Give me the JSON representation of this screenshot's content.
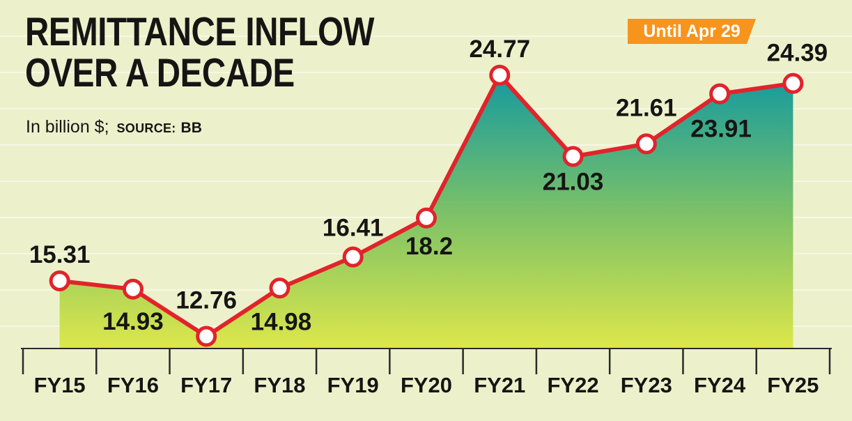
{
  "title": {
    "line1": "REMITTANCE INFLOW",
    "line2": "OVER A DECADE"
  },
  "subtitle": {
    "unit": "In billion $;",
    "source_label": "SOURCE:",
    "source_value": "BB"
  },
  "badge": {
    "label": "Until Apr 29",
    "color": "#f7941e"
  },
  "colors": {
    "background": "#ecf1cb",
    "line": "#e2232b",
    "marker_fill": "#ffffff",
    "text": "#161514",
    "axis": "#2a2a2a",
    "area_top": "#149a9f",
    "area_mid": "#7fc266",
    "area_bottom": "#dde74b",
    "gridline": "rgba(255,255,255,0.5)"
  },
  "chart_data": {
    "type": "area",
    "categories": [
      "FY15",
      "FY16",
      "FY17",
      "FY18",
      "FY19",
      "FY20",
      "FY21",
      "FY22",
      "FY23",
      "FY24",
      "FY25"
    ],
    "values": [
      15.31,
      14.93,
      12.76,
      14.98,
      16.41,
      18.2,
      24.77,
      21.03,
      21.61,
      23.91,
      24.39
    ],
    "value_labels": [
      "15.31",
      "14.93",
      "12.76",
      "14.98",
      "16.41",
      "18.2",
      "24.77",
      "21.03",
      "21.61",
      "23.91",
      "24.39"
    ],
    "title": "REMITTANCE INFLOW OVER A DECADE",
    "subtitle_unit": "In billion $",
    "source": "BB",
    "annotation": "Until Apr 29",
    "xlabel": "",
    "ylabel": "",
    "ylim": [
      12.2,
      25.4
    ],
    "grid": "faint-horizontal",
    "legend": "none",
    "line_color": "#e2232b",
    "marker": "white-circle-red-ring",
    "area_gradient": [
      "#149a9f",
      "#7fc266",
      "#dde74b"
    ]
  }
}
